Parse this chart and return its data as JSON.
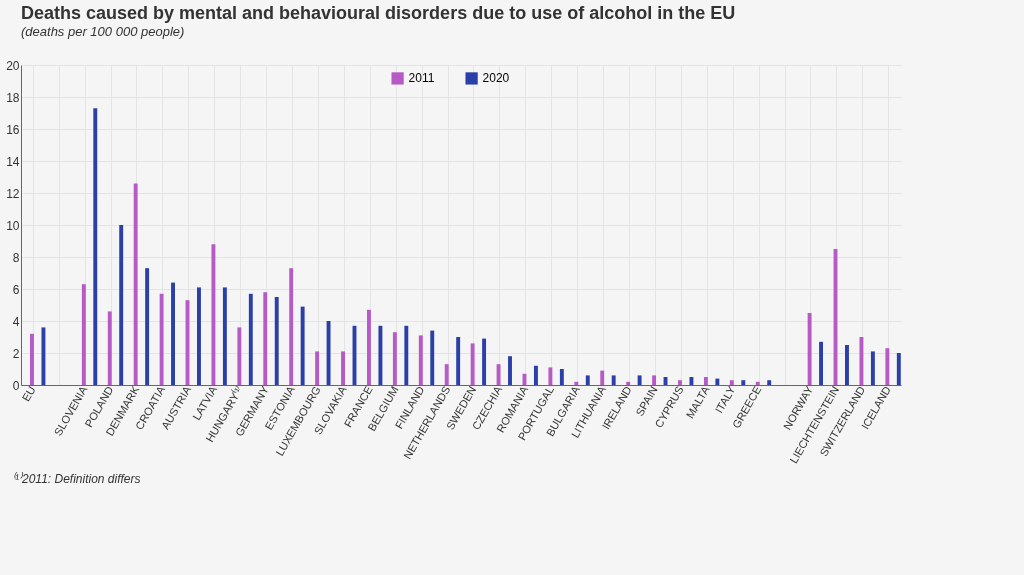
{
  "chart_data": {
    "type": "bar",
    "title": "Deaths caused by mental and behavioural disorders due to use of alcohol in the EU",
    "subtitle": "(deaths per 100 000 people)",
    "categories": [
      "EU",
      null,
      "SLOVENIA",
      "POLAND",
      "DENMARK",
      "CROATIA",
      "AUSTRIA",
      "LATVIA",
      "HUNGARY⁽¹⁾",
      "GERMANY",
      "ESTONIA",
      "LUXEMBOURG",
      "SLOVAKIA",
      "FRANCE",
      "BELGIUM",
      "FINLAND",
      "NETHERLANDS",
      "SWEDEN",
      "CZECHIA",
      "ROMANIA",
      "PORTUGAL",
      "BULGARIA",
      "LITHUANIA",
      "IRELAND",
      "SPAIN",
      "CYPRUS",
      "MALTA",
      "ITALY",
      "GREECE",
      null,
      "NORWAY",
      "LIECHTENSTEIN",
      "SWITZERLAND",
      "ICELAND"
    ],
    "series": [
      {
        "name": "2011",
        "color": "#b65ac6",
        "values": [
          3.2,
          null,
          6.3,
          4.6,
          12.6,
          5.7,
          5.3,
          8.8,
          3.6,
          5.8,
          7.3,
          2.1,
          2.1,
          4.7,
          3.3,
          3.1,
          1.3,
          2.6,
          1.3,
          0.7,
          1.1,
          0.2,
          0.9,
          0.2,
          0.6,
          0.3,
          0.5,
          0.3,
          0.2,
          null,
          4.5,
          8.5,
          3.0,
          2.3
        ]
      },
      {
        "name": "2020",
        "color": "#2a3fa8",
        "values": [
          3.6,
          null,
          17.3,
          10.0,
          7.3,
          6.4,
          6.1,
          6.1,
          5.7,
          5.5,
          4.9,
          4.0,
          3.7,
          3.7,
          3.7,
          3.4,
          3.0,
          2.9,
          1.8,
          1.2,
          1.0,
          0.6,
          0.6,
          0.6,
          0.5,
          0.5,
          0.4,
          0.3,
          0.3,
          null,
          2.7,
          2.5,
          2.1,
          2.0
        ]
      }
    ],
    "ylim": [
      0,
      20
    ],
    "yticks": [
      0,
      2,
      4,
      6,
      8,
      10,
      12,
      14,
      16,
      18,
      20
    ],
    "grid": true,
    "legend": "top",
    "annotations": [
      "⁽¹⁾2011: Definition differs"
    ]
  }
}
